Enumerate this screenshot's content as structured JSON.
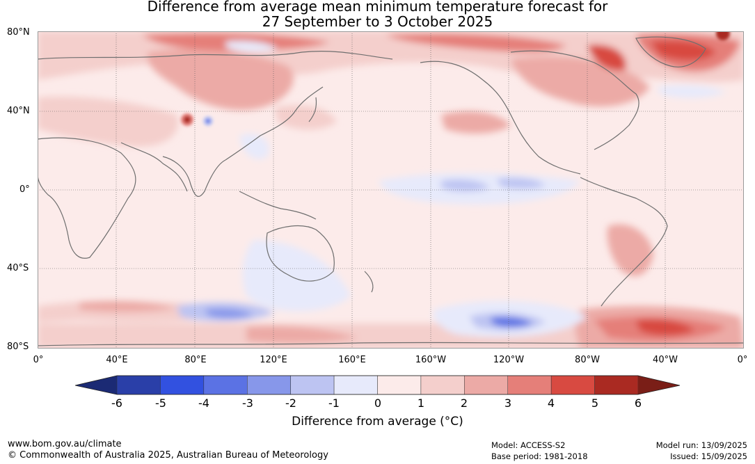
{
  "title": {
    "line1": "Difference from average mean minimum temperature forecast for",
    "line2": "27 September to 3 October 2025"
  },
  "map": {
    "projection": "equirectangular, centred on 180°",
    "lat_labels": [
      "80°N",
      "40°N",
      "0°",
      "40°S",
      "80°S"
    ],
    "lon_labels": [
      "0°",
      "40°E",
      "80°E",
      "120°E",
      "160°E",
      "160°W",
      "120°W",
      "80°W",
      "40°W",
      "0°"
    ],
    "gridlines": true,
    "coastline_color": "#6e6e6e"
  },
  "colorbar": {
    "title": "Difference from average (°C)",
    "ticks": [
      "-6",
      "-5",
      "-4",
      "-3",
      "-2",
      "-1",
      "0",
      "1",
      "2",
      "3",
      "4",
      "5",
      "6"
    ],
    "under_color": "#1b2a74",
    "over_color": "#7a1e17",
    "colors": [
      "#2a3fa8",
      "#3251e0",
      "#5b72e4",
      "#8797ea",
      "#bdc4f2",
      "#e7eafb",
      "#fcebea",
      "#f4cfcc",
      "#ecaaa6",
      "#e57f79",
      "#d84a41",
      "#aa2a22"
    ]
  },
  "footer": {
    "website": "www.bom.gov.au/climate",
    "copyright": "© Commonwealth of Australia 2025, Australian Bureau of Meteorology",
    "model": "Model: ACCESS-S2",
    "base_period": "Base period: 1981-2018",
    "model_run": "Model run: 13/09/2025",
    "issued": "Issued: 15/09/2025"
  }
}
